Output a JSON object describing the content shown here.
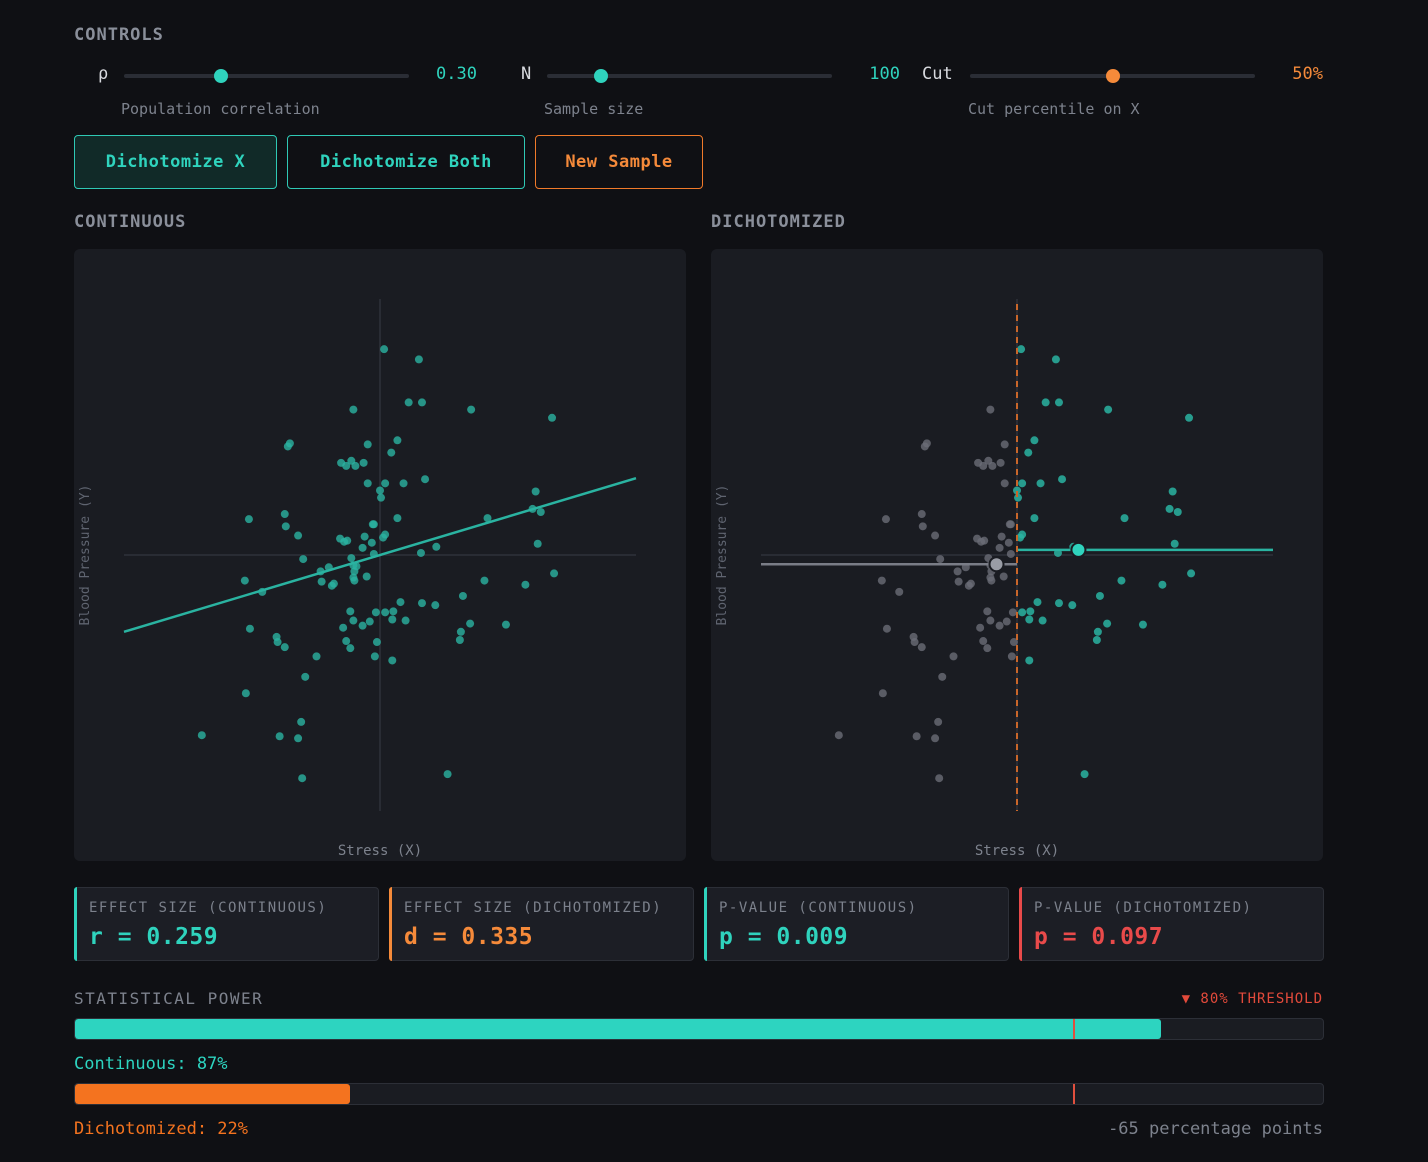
{
  "controls": {
    "title": "CONTROLS",
    "sliders": [
      {
        "label": "ρ",
        "value": "0.30",
        "fraction": 0.34,
        "description": "Population correlation",
        "color": "#2fd3bd"
      },
      {
        "label": "N",
        "value": "100",
        "fraction": 0.19,
        "description": "Sample size",
        "color": "#2fd3bd"
      },
      {
        "label": "Cut",
        "value": "50%",
        "fraction": 0.5,
        "description": "Cut percentile on X",
        "color": "#f58a3a"
      }
    ]
  },
  "buttons": {
    "dichotomize_x": "Dichotomize X",
    "dichotomize_both": "Dichotomize Both",
    "new_sample": "New Sample"
  },
  "panels": {
    "continuous_title": "CONTINUOUS",
    "dichotomized_title": "DICHOTOMIZED",
    "x_label": "Stress (X)",
    "y_label": "Blood Pressure (Y)"
  },
  "chart_data": {
    "type": "scatter",
    "cut_x": 0.0,
    "xlim": [
      -2.5,
      2.5
    ],
    "ylim": [
      -2.5,
      2.5
    ],
    "regression": {
      "slope": 0.3,
      "intercept": 0.0
    },
    "group_means": {
      "low": {
        "x": -0.2,
        "y": -0.09
      },
      "high": {
        "x": 0.6,
        "y": 0.05
      }
    },
    "points": [
      [
        0.04,
        2.01
      ],
      [
        0.38,
        1.91
      ],
      [
        0.28,
        1.49
      ],
      [
        0.41,
        1.49
      ],
      [
        -0.26,
        1.42
      ],
      [
        0.89,
        1.42
      ],
      [
        1.68,
        1.34
      ],
      [
        -0.12,
        1.08
      ],
      [
        0.17,
        1.12
      ],
      [
        -0.9,
        1.06
      ],
      [
        -0.88,
        1.09
      ],
      [
        0.11,
        1.0
      ],
      [
        -0.16,
        0.9
      ],
      [
        -0.38,
        0.9
      ],
      [
        -0.33,
        0.87
      ],
      [
        -0.28,
        0.92
      ],
      [
        -0.24,
        0.87
      ],
      [
        0.44,
        0.74
      ],
      [
        0.23,
        0.7
      ],
      [
        0.05,
        0.7
      ],
      [
        -0.12,
        0.7
      ],
      [
        1.52,
        0.62
      ],
      [
        0.0,
        0.63
      ],
      [
        0.01,
        0.56
      ],
      [
        1.49,
        0.45
      ],
      [
        1.57,
        0.42
      ],
      [
        1.05,
        0.36
      ],
      [
        0.17,
        0.36
      ],
      [
        -0.93,
        0.4
      ],
      [
        -0.92,
        0.28
      ],
      [
        -1.28,
        0.35
      ],
      [
        -0.07,
        0.3
      ],
      [
        -0.06,
        0.3
      ],
      [
        -0.8,
        0.19
      ],
      [
        -0.32,
        0.14
      ],
      [
        -0.39,
        0.16
      ],
      [
        -0.35,
        0.13
      ],
      [
        -0.15,
        0.18
      ],
      [
        -0.08,
        0.12
      ],
      [
        0.05,
        0.2
      ],
      [
        0.03,
        0.17
      ],
      [
        1.54,
        0.11
      ],
      [
        0.55,
        0.08
      ],
      [
        -0.17,
        0.07
      ],
      [
        0.4,
        0.02
      ],
      [
        -0.06,
        0.01
      ],
      [
        -0.75,
        -0.04
      ],
      [
        -0.28,
        -0.03
      ],
      [
        -0.5,
        -0.12
      ],
      [
        -0.58,
        -0.16
      ],
      [
        -0.26,
        -0.1
      ],
      [
        -0.23,
        -0.11
      ],
      [
        -0.25,
        -0.16
      ],
      [
        -1.32,
        -0.25
      ],
      [
        -0.57,
        -0.26
      ],
      [
        -0.47,
        -0.3
      ],
      [
        -0.13,
        -0.21
      ],
      [
        -0.26,
        -0.22
      ],
      [
        -0.25,
        -0.25
      ],
      [
        -0.45,
        -0.28
      ],
      [
        -1.15,
        -0.36
      ],
      [
        1.02,
        -0.25
      ],
      [
        1.42,
        -0.29
      ],
      [
        0.81,
        -0.4
      ],
      [
        1.7,
        -0.18
      ],
      [
        0.2,
        -0.46
      ],
      [
        0.41,
        -0.47
      ],
      [
        0.54,
        -0.49
      ],
      [
        0.13,
        -0.55
      ],
      [
        -0.04,
        -0.56
      ],
      [
        0.05,
        -0.56
      ],
      [
        -0.29,
        -0.55
      ],
      [
        0.25,
        -0.64
      ],
      [
        0.12,
        -0.63
      ],
      [
        -0.1,
        -0.65
      ],
      [
        -0.17,
        -0.69
      ],
      [
        -0.36,
        -0.71
      ],
      [
        1.23,
        -0.68
      ],
      [
        0.88,
        -0.67
      ],
      [
        0.79,
        -0.75
      ],
      [
        -1.27,
        -0.72
      ],
      [
        -1.01,
        -0.8
      ],
      [
        -1.0,
        -0.85
      ],
      [
        0.78,
        -0.83
      ],
      [
        -0.33,
        -0.84
      ],
      [
        -0.03,
        -0.85
      ],
      [
        -0.29,
        -0.91
      ],
      [
        -0.93,
        -0.9
      ],
      [
        -0.62,
        -0.99
      ],
      [
        -0.05,
        -0.99
      ],
      [
        0.12,
        -1.03
      ],
      [
        -0.73,
        -1.19
      ],
      [
        -1.31,
        -1.35
      ],
      [
        -0.77,
        -1.63
      ],
      [
        -1.74,
        -1.76
      ],
      [
        -0.98,
        -1.77
      ],
      [
        -0.8,
        -1.79
      ],
      [
        0.66,
        -2.14
      ],
      [
        -0.76,
        -2.18
      ],
      [
        -0.26,
        -0.64
      ]
    ]
  },
  "stats": [
    {
      "title": "EFFECT SIZE (CONTINUOUS)",
      "value": "r = 0.259",
      "color": "#2fd3bd"
    },
    {
      "title": "EFFECT SIZE (DICHOTOMIZED)",
      "value": "d = 0.335",
      "color": "#f58a3a"
    },
    {
      "title": "P-VALUE (CONTINUOUS)",
      "value": "p = 0.009",
      "color": "#2fd3bd"
    },
    {
      "title": "P-VALUE (DICHOTOMIZED)",
      "value": "p = 0.097",
      "color": "#e84a4a"
    }
  ],
  "power": {
    "title": "STATISTICAL POWER",
    "threshold_label": "▼ 80% THRESHOLD",
    "threshold": 0.8,
    "continuous": {
      "label": "Continuous: 87%",
      "fraction": 0.87,
      "color": "#2dd4c0"
    },
    "dichotomized": {
      "label": "Dichotomized: 22%",
      "fraction": 0.22,
      "color": "#f4731f"
    },
    "difference": "-65 percentage points"
  }
}
